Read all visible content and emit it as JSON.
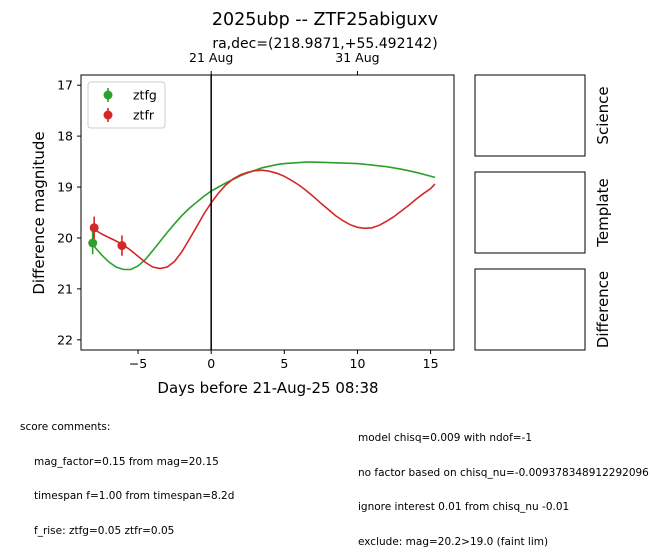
{
  "chart_data": {
    "type": "scatter",
    "title": "2025ubp -- ZTF25abiguxv",
    "subtitle": "ra,dec=(218.9871,+55.492142)",
    "xlabel": "Days before 21-Aug-25 08:38",
    "ylabel": "Difference magnitude",
    "xlim": [
      -8.9,
      16.6
    ],
    "ylim": [
      22.2,
      16.8
    ],
    "y_inverted": true,
    "x_ticks": [
      -5,
      0,
      5,
      10,
      15
    ],
    "x_tick_labels": [
      "−5",
      "0",
      "5",
      "10",
      "15"
    ],
    "y_ticks": [
      17,
      18,
      19,
      20,
      21,
      22
    ],
    "y_tick_labels": [
      "17",
      "18",
      "19",
      "20",
      "21",
      "22"
    ],
    "top_axis_ticks": [
      {
        "x": 0,
        "label": "21 Aug"
      },
      {
        "x": 10,
        "label": "31 Aug"
      }
    ],
    "vline_x": 0,
    "legend_position": "upper-left",
    "grid": false,
    "series": [
      {
        "name": "ztfg",
        "color": "#2ca02c",
        "points": [
          {
            "x": -8.1,
            "y": 20.1,
            "yerr": 0.22
          }
        ],
        "model": [
          [
            -8.1,
            20.13
          ],
          [
            -7.5,
            20.33
          ],
          [
            -7,
            20.47
          ],
          [
            -6.5,
            20.57
          ],
          [
            -6,
            20.62
          ],
          [
            -5.5,
            20.62
          ],
          [
            -5,
            20.55
          ],
          [
            -4.5,
            20.42
          ],
          [
            -4,
            20.25
          ],
          [
            -3.5,
            20.07
          ],
          [
            -3,
            19.89
          ],
          [
            -2.5,
            19.72
          ],
          [
            -2,
            19.56
          ],
          [
            -1.5,
            19.42
          ],
          [
            -1,
            19.3
          ],
          [
            -0.5,
            19.18
          ],
          [
            0,
            19.08
          ],
          [
            0.5,
            19.0
          ],
          [
            1,
            18.92
          ],
          [
            1.5,
            18.85
          ],
          [
            2,
            18.78
          ],
          [
            2.5,
            18.72
          ],
          [
            3,
            18.67
          ],
          [
            3.5,
            18.62
          ],
          [
            4,
            18.59
          ],
          [
            4.5,
            18.56
          ],
          [
            5,
            18.54
          ],
          [
            5.5,
            18.53
          ],
          [
            6,
            18.52
          ],
          [
            6.5,
            18.51
          ],
          [
            7,
            18.51
          ],
          [
            8,
            18.52
          ],
          [
            9,
            18.53
          ],
          [
            10,
            18.54
          ],
          [
            11,
            18.57
          ],
          [
            12,
            18.6
          ],
          [
            13,
            18.65
          ],
          [
            14,
            18.71
          ],
          [
            15.3,
            18.81
          ]
        ]
      },
      {
        "name": "ztfr",
        "color": "#d62728",
        "points": [
          {
            "x": -8.0,
            "y": 19.8,
            "yerr": 0.22
          },
          {
            "x": -6.1,
            "y": 20.15,
            "yerr": 0.2
          }
        ],
        "model": [
          [
            -8,
            19.83
          ],
          [
            -7.5,
            19.92
          ],
          [
            -7,
            19.99
          ],
          [
            -6.5,
            20.06
          ],
          [
            -6,
            20.14
          ],
          [
            -5.5,
            20.24
          ],
          [
            -5,
            20.36
          ],
          [
            -4.5,
            20.48
          ],
          [
            -4,
            20.57
          ],
          [
            -3.5,
            20.6
          ],
          [
            -3,
            20.57
          ],
          [
            -2.5,
            20.46
          ],
          [
            -2,
            20.27
          ],
          [
            -1.5,
            20.03
          ],
          [
            -1,
            19.78
          ],
          [
            -0.5,
            19.53
          ],
          [
            0,
            19.31
          ],
          [
            0.5,
            19.12
          ],
          [
            1,
            18.96
          ],
          [
            1.5,
            18.84
          ],
          [
            2,
            18.76
          ],
          [
            2.5,
            18.71
          ],
          [
            3,
            18.68
          ],
          [
            3.5,
            18.67
          ],
          [
            4,
            18.69
          ],
          [
            4.5,
            18.73
          ],
          [
            5,
            18.79
          ],
          [
            5.5,
            18.87
          ],
          [
            6,
            18.96
          ],
          [
            6.5,
            19.07
          ],
          [
            7,
            19.19
          ],
          [
            7.5,
            19.32
          ],
          [
            8,
            19.44
          ],
          [
            8.5,
            19.56
          ],
          [
            9,
            19.66
          ],
          [
            9.5,
            19.74
          ],
          [
            10,
            19.79
          ],
          [
            10.5,
            19.81
          ],
          [
            11,
            19.8
          ],
          [
            11.5,
            19.75
          ],
          [
            12,
            19.67
          ],
          [
            12.5,
            19.58
          ],
          [
            13,
            19.47
          ],
          [
            13.5,
            19.36
          ],
          [
            14,
            19.24
          ],
          [
            14.5,
            19.13
          ],
          [
            15,
            19.03
          ],
          [
            15.3,
            18.94
          ]
        ]
      }
    ]
  },
  "cutouts": [
    {
      "name": "science",
      "label": "Science"
    },
    {
      "name": "template",
      "label": "Template"
    },
    {
      "name": "difference",
      "label": "Difference"
    }
  ],
  "comments": {
    "left_header": "score comments:",
    "left_lines": [
      "mag_factor=0.15 from mag=20.15",
      "timespan f=1.00 from timespan=8.2d",
      "f_rise: ztfg=0.05 ztfr=0.05"
    ],
    "right_lines": [
      "model chisq=0.009 with ndof=-1",
      "no factor based on chisq_nu=-0.009378348912292096",
      "ignore interest 0.01 from chisq_nu -0.01",
      "exclude: mag=20.2>19.0 (faint lim)"
    ]
  }
}
